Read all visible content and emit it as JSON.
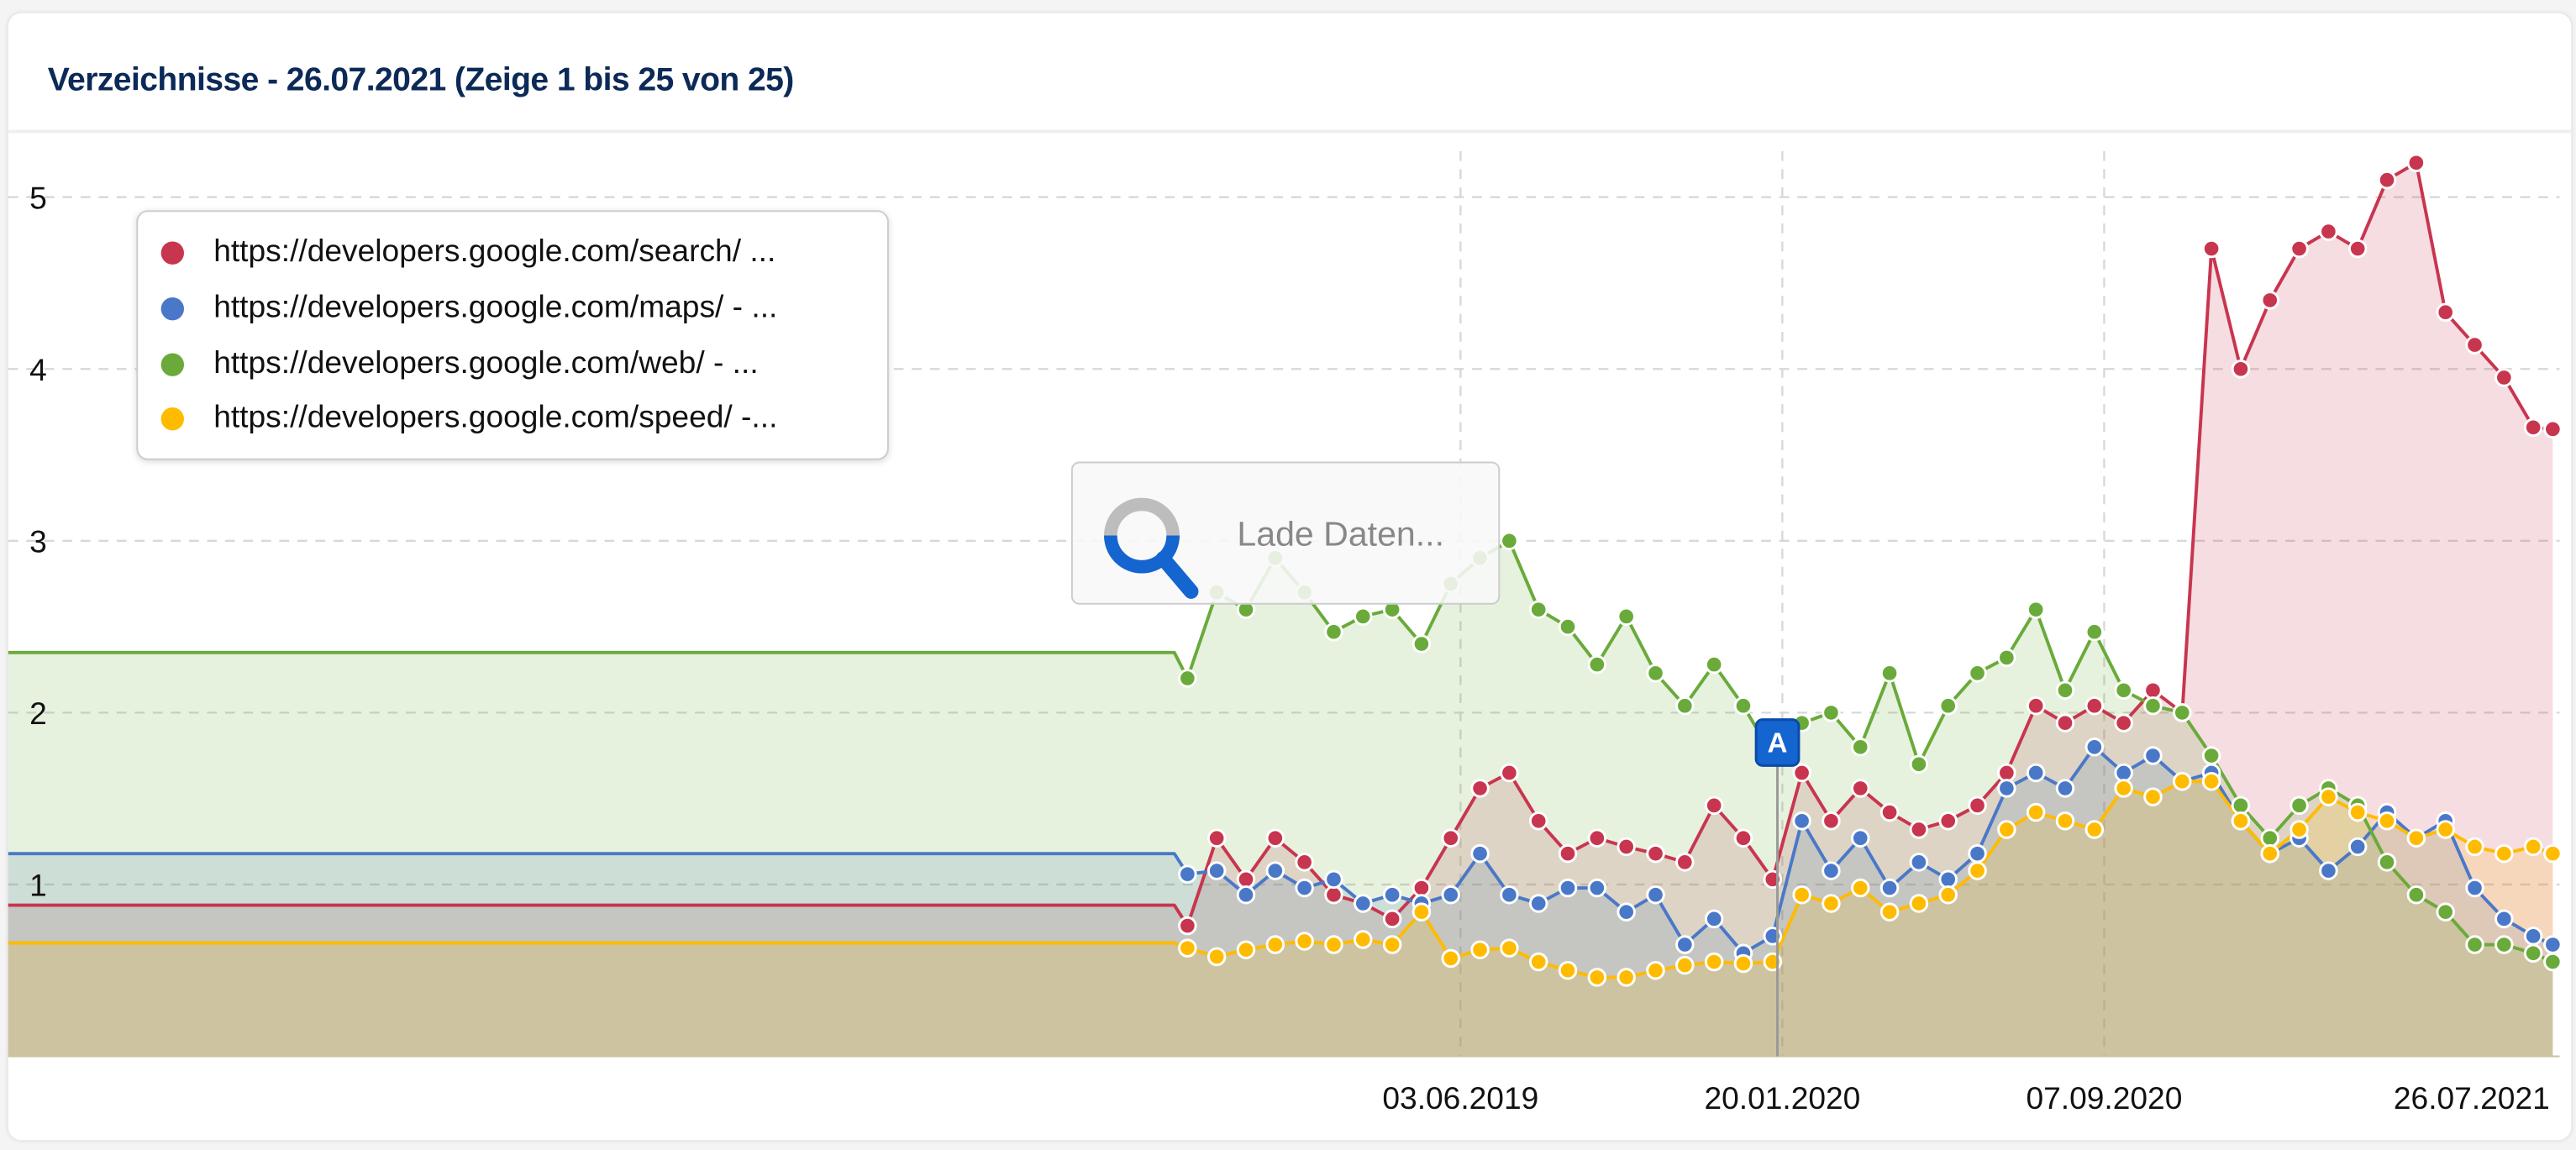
{
  "header": {
    "title": "Verzeichnisse - 26.07.2021 (Zeige 1 bis 25 von 25)"
  },
  "loading": {
    "text": "Lade Daten...",
    "icon": "magnifier-icon"
  },
  "annotation": {
    "label": "A",
    "date": "2020-01-20",
    "color": "#1565d0"
  },
  "chart_data": {
    "type": "area",
    "title": "",
    "xlabel": "",
    "ylabel": "",
    "ylim": [
      0,
      5.2
    ],
    "yticks": [
      1,
      2,
      3,
      4,
      5
    ],
    "xtick_labels": [
      "03.06.2019",
      "20.01.2020",
      "07.09.2020",
      "26.07.2021"
    ],
    "xtick_dates": [
      "2019-06-03",
      "2020-01-20",
      "2020-09-07",
      "2021-07-26"
    ],
    "grid": true,
    "legend": "top-left",
    "x": [
      "2016-07-25",
      "2018-11-19",
      "2018-12-10",
      "2018-12-31",
      "2019-01-21",
      "2019-02-11",
      "2019-03-04",
      "2019-03-25",
      "2019-04-15",
      "2019-05-06",
      "2019-05-27",
      "2019-06-17",
      "2019-07-08",
      "2019-07-29",
      "2019-08-19",
      "2019-09-09",
      "2019-09-30",
      "2019-10-21",
      "2019-11-11",
      "2019-12-02",
      "2019-12-23",
      "2020-01-13",
      "2020-02-03",
      "2020-02-24",
      "2020-03-16",
      "2020-04-06",
      "2020-04-27",
      "2020-05-18",
      "2020-06-08",
      "2020-06-29",
      "2020-07-20",
      "2020-08-10",
      "2020-08-31",
      "2020-09-21",
      "2020-10-12",
      "2020-11-02",
      "2020-11-23",
      "2020-12-14",
      "2021-01-04",
      "2021-01-25",
      "2021-02-15",
      "2021-03-08",
      "2021-03-29",
      "2021-04-19",
      "2021-05-10",
      "2021-05-31",
      "2021-06-21",
      "2021-07-12",
      "2021-07-26"
    ],
    "series": [
      {
        "name": "https://developers.google.com/search/ ...",
        "color": "#c8354f",
        "values": [
          0.88,
          0.76,
          1.27,
          1.03,
          1.27,
          1.13,
          0.94,
          0.89,
          0.8,
          0.98,
          1.27,
          1.56,
          1.65,
          1.37,
          1.18,
          1.27,
          1.22,
          1.18,
          1.13,
          1.46,
          1.27,
          1.03,
          1.65,
          1.37,
          1.56,
          1.42,
          1.32,
          1.37,
          1.46,
          1.65,
          2.04,
          1.94,
          2.04,
          1.94,
          2.13,
          2.0,
          4.7,
          4.0,
          4.4,
          4.7,
          4.8,
          4.7,
          5.1,
          5.2,
          4.33,
          4.14,
          3.95,
          3.66,
          3.65
        ]
      },
      {
        "name": "https://developers.google.com/maps/ - ...",
        "color": "#4a78c9",
        "values": [
          1.18,
          1.06,
          1.08,
          0.94,
          1.08,
          0.98,
          1.03,
          0.89,
          0.94,
          0.89,
          0.94,
          1.18,
          0.94,
          0.89,
          0.98,
          0.98,
          0.84,
          0.94,
          0.65,
          0.8,
          0.6,
          0.7,
          1.37,
          1.08,
          1.27,
          0.98,
          1.13,
          1.03,
          1.18,
          1.56,
          1.65,
          1.56,
          1.8,
          1.65,
          1.75,
          1.6,
          1.65,
          1.37,
          1.18,
          1.27,
          1.08,
          1.22,
          1.42,
          1.27,
          1.37,
          0.98,
          0.8,
          0.7,
          0.65
        ]
      },
      {
        "name": "https://developers.google.com/web/ - ...",
        "color": "#6aaa3a",
        "values": [
          2.35,
          2.2,
          2.7,
          2.6,
          2.9,
          2.7,
          2.47,
          2.56,
          2.6,
          2.4,
          2.75,
          2.9,
          3.0,
          2.6,
          2.5,
          2.28,
          2.56,
          2.23,
          2.04,
          2.28,
          2.04,
          1.75,
          1.94,
          2.0,
          1.8,
          2.23,
          1.7,
          2.04,
          2.23,
          2.32,
          2.6,
          2.13,
          2.47,
          2.13,
          2.04,
          2.0,
          1.75,
          1.46,
          1.27,
          1.46,
          1.56,
          1.46,
          1.13,
          0.94,
          0.84,
          0.65,
          0.65,
          0.6,
          0.55
        ]
      },
      {
        "name": "https://developers.google.com/speed/ -...",
        "color": "#ffbb00",
        "values": [
          0.66,
          0.63,
          0.58,
          0.62,
          0.65,
          0.67,
          0.65,
          0.68,
          0.65,
          0.84,
          0.57,
          0.62,
          0.63,
          0.55,
          0.5,
          0.46,
          0.46,
          0.5,
          0.53,
          0.55,
          0.54,
          0.55,
          0.94,
          0.89,
          0.98,
          0.84,
          0.89,
          0.94,
          1.08,
          1.32,
          1.42,
          1.37,
          1.32,
          1.56,
          1.51,
          1.6,
          1.6,
          1.37,
          1.18,
          1.32,
          1.51,
          1.42,
          1.37,
          1.27,
          1.32,
          1.22,
          1.18,
          1.22,
          1.18
        ]
      }
    ]
  }
}
